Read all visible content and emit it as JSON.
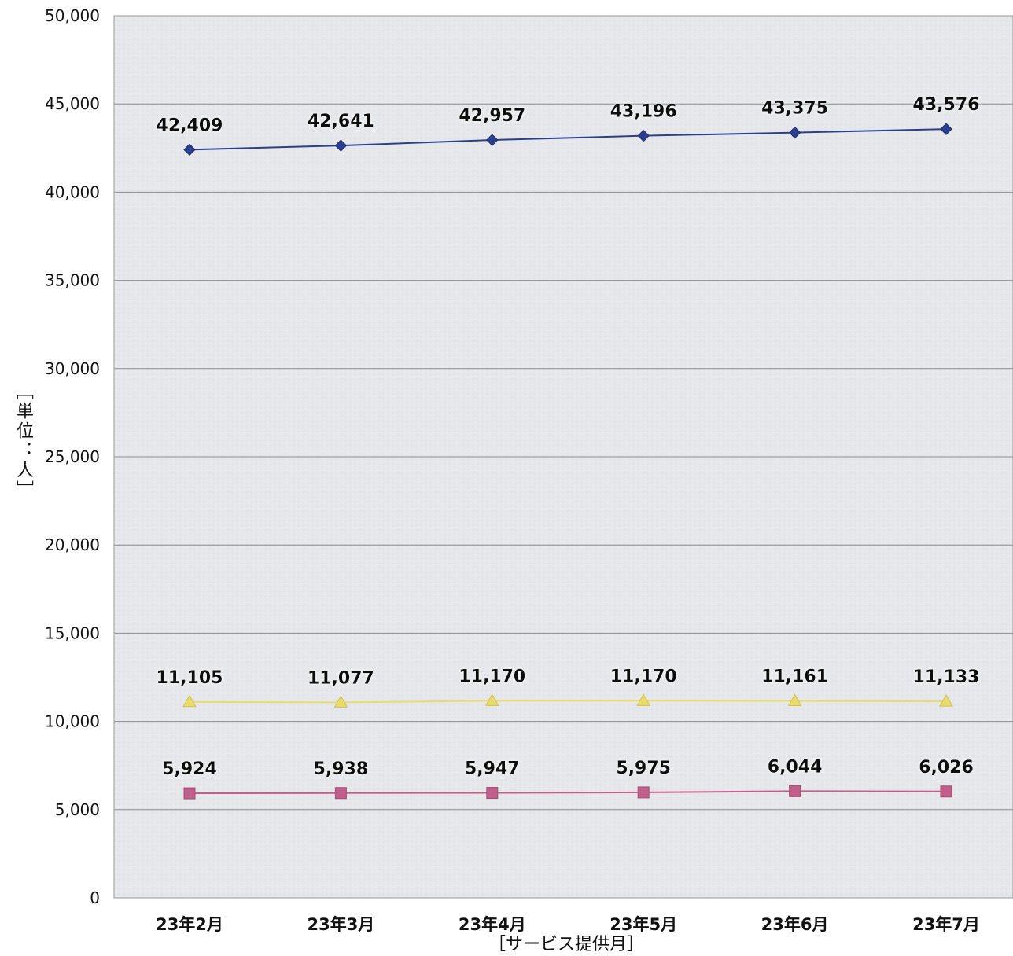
{
  "chart_data": {
    "type": "line",
    "title": "",
    "xlabel": "［サービス提供月］",
    "ylabel": "［単位：人］",
    "ylim": [
      0,
      50000
    ],
    "yticks": [
      0,
      5000,
      10000,
      15000,
      20000,
      25000,
      30000,
      35000,
      40000,
      45000,
      50000
    ],
    "ytick_labels": [
      "0",
      "5,000",
      "10,000",
      "15,000",
      "20,000",
      "25,000",
      "30,000",
      "35,000",
      "40,000",
      "45,000",
      "50,000"
    ],
    "categories": [
      "23年2月",
      "23年3月",
      "23年4月",
      "23年5月",
      "23年6月",
      "23年7月"
    ],
    "grid": true,
    "legend": "none",
    "series": [
      {
        "marker": "diamond",
        "color": "#2b3f8f",
        "values": [
          42409,
          42641,
          42957,
          43196,
          43375,
          43576
        ],
        "labels": [
          "42,409",
          "42,641",
          "42,957",
          "43,196",
          "43,375",
          "43,576"
        ]
      },
      {
        "marker": "triangle",
        "color": "#eadc6a",
        "values": [
          11105,
          11077,
          11170,
          11170,
          11161,
          11133
        ],
        "labels": [
          "11,105",
          "11,077",
          "11,170",
          "11,170",
          "11,161",
          "11,133"
        ]
      },
      {
        "marker": "square",
        "color": "#c0608a",
        "values": [
          5924,
          5938,
          5947,
          5975,
          6044,
          6026
        ],
        "labels": [
          "5,924",
          "5,938",
          "5,947",
          "5,975",
          "6,044",
          "6,026"
        ]
      }
    ]
  }
}
